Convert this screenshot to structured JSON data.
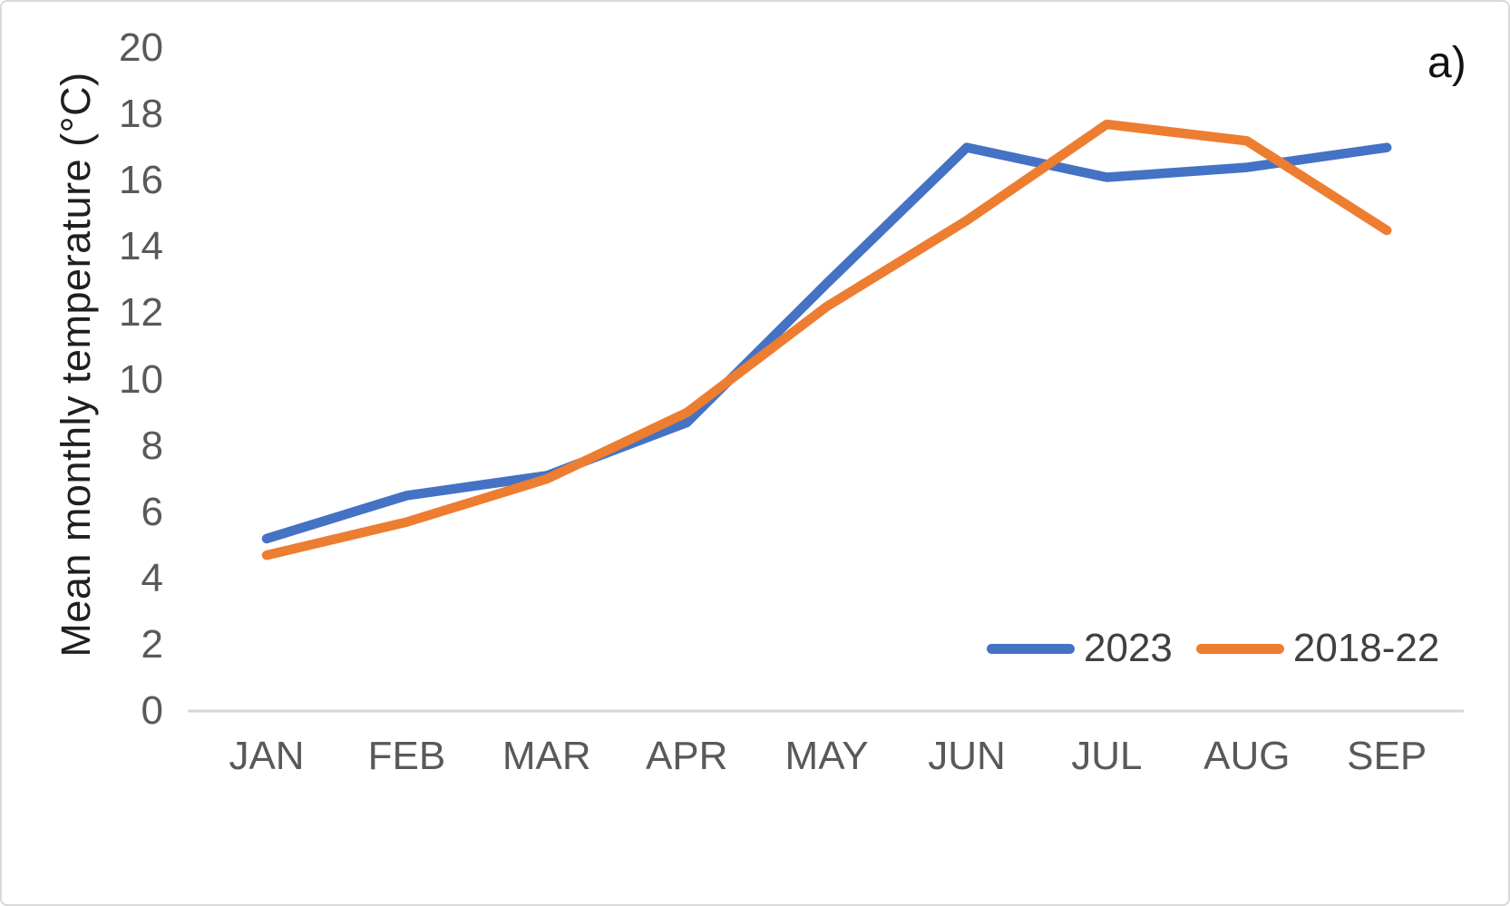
{
  "figure": {
    "panel_label": "a)"
  },
  "chart_data": {
    "type": "line",
    "title": "",
    "xlabel": "",
    "ylabel": "Mean monthly temperature (°C)",
    "categories": [
      "JAN",
      "FEB",
      "MAR",
      "APR",
      "MAY",
      "JUN",
      "JUL",
      "AUG",
      "SEP"
    ],
    "series": [
      {
        "name": "2023",
        "color": "#4472C4",
        "values": [
          5.2,
          6.5,
          7.1,
          8.7,
          12.9,
          17.0,
          16.1,
          16.4,
          17.0
        ]
      },
      {
        "name": "2018-22",
        "color": "#ED7D31",
        "values": [
          4.7,
          5.7,
          7.0,
          9.0,
          12.2,
          14.8,
          17.7,
          17.2,
          14.5
        ]
      }
    ],
    "ylim": [
      0,
      20
    ],
    "yticks": [
      0,
      2,
      4,
      6,
      8,
      10,
      12,
      14,
      16,
      18,
      20
    ],
    "grid": "off",
    "legend_position": "inside-bottom-right",
    "axis_line_color": "#d6d6d6",
    "tick_text_color": "#595959"
  }
}
